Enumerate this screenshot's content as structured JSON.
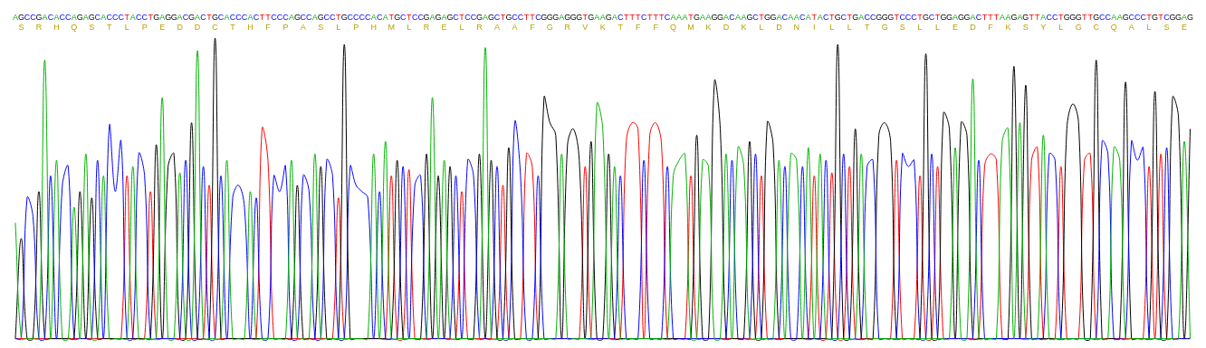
{
  "chart_data": {
    "type": "line",
    "sequence": "AGCCGACACCAGAGCACCCTACCTGAGGACGACTGCACCCACTTCCCAGCCAGCCTGCCCCACATGCTCCGAGAGCTCCGAGCTGCCTTCGGGAGGGTGAAGACTTTCTTTCAAATGAAGGACAAGCTGGACAACATACTGCTGACCGGGTCCCTGCTGGAGGACTTTAAGAGTTACCTGGGTTGCCAAGCCCTGTCGGAG",
    "translation": "SRHQSTLPEDDCTHFPASLPHMLRELRAAFGRVKTFFQMKDKLDNILLTGSLLEDFKSYLGCQALSE",
    "ylim": [
      0,
      100
    ],
    "grid": false,
    "tick_labels": "x",
    "series": [
      {
        "name": "A",
        "color": "#00b400",
        "values": [
          40,
          3,
          3,
          3,
          3,
          92,
          3,
          60,
          3,
          3,
          45,
          3,
          62,
          3,
          3,
          55,
          3,
          3,
          3,
          3,
          58,
          3,
          3,
          3,
          3,
          80,
          3,
          3,
          56,
          3,
          3,
          95,
          3,
          3,
          3,
          3,
          60,
          3,
          3,
          3,
          50,
          3,
          3,
          3,
          3,
          3,
          3,
          60,
          3,
          3,
          3,
          62,
          3,
          3,
          3,
          3,
          3,
          3,
          3,
          3,
          3,
          62,
          3,
          66,
          3,
          3,
          3,
          3,
          3,
          3,
          3,
          80,
          3,
          60,
          3,
          3,
          3,
          3,
          3,
          3,
          96,
          3,
          3,
          3,
          3,
          3,
          3,
          3,
          3,
          3,
          3,
          3,
          3,
          62,
          3,
          3,
          3,
          3,
          3,
          78,
          70,
          3,
          58,
          3,
          3,
          3,
          3,
          3,
          3,
          3,
          3,
          3,
          55,
          60,
          62,
          3,
          3,
          60,
          58,
          3,
          3,
          62,
          3,
          64,
          58,
          3,
          3,
          3,
          3,
          3,
          60,
          3,
          62,
          60,
          3,
          64,
          3,
          62,
          3,
          3,
          3,
          3,
          3,
          3,
          62,
          3,
          3,
          3,
          3,
          3,
          3,
          3,
          3,
          3,
          3,
          3,
          3,
          3,
          3,
          3,
          64,
          3,
          3,
          86,
          3,
          3,
          3,
          3,
          66,
          70,
          3,
          72,
          3,
          3,
          3,
          68,
          3,
          3,
          3,
          3,
          3,
          3,
          3,
          3,
          3,
          3,
          3,
          64,
          60,
          3,
          3,
          3,
          3,
          3,
          3,
          3,
          3,
          3,
          3,
          66,
          3
        ]
      },
      {
        "name": "C",
        "color": "#0000ff",
        "values": [
          3,
          3,
          48,
          42,
          3,
          3,
          55,
          3,
          52,
          58,
          3,
          3,
          3,
          3,
          60,
          3,
          71,
          50,
          66,
          3,
          3,
          62,
          55,
          3,
          3,
          3,
          3,
          3,
          3,
          60,
          3,
          3,
          58,
          3,
          3,
          55,
          3,
          48,
          52,
          45,
          3,
          48,
          3,
          3,
          55,
          50,
          58,
          3,
          3,
          55,
          50,
          3,
          3,
          60,
          55,
          3,
          3,
          58,
          52,
          50,
          48,
          3,
          50,
          3,
          3,
          3,
          58,
          3,
          52,
          55,
          3,
          3,
          3,
          3,
          3,
          55,
          3,
          60,
          55,
          3,
          3,
          3,
          58,
          3,
          3,
          72,
          55,
          3,
          3,
          55,
          3,
          3,
          3,
          3,
          3,
          3,
          3,
          3,
          3,
          3,
          3,
          3,
          3,
          55,
          3,
          3,
          3,
          60,
          3,
          3,
          3,
          58,
          3,
          3,
          3,
          3,
          3,
          3,
          3,
          3,
          3,
          3,
          60,
          3,
          3,
          3,
          62,
          3,
          3,
          3,
          3,
          58,
          3,
          3,
          58,
          3,
          3,
          3,
          60,
          3,
          3,
          62,
          3,
          3,
          3,
          58,
          60,
          3,
          3,
          3,
          3,
          62,
          58,
          60,
          3,
          3,
          62,
          3,
          3,
          3,
          3,
          3,
          3,
          3,
          60,
          3,
          3,
          3,
          3,
          3,
          3,
          3,
          3,
          3,
          3,
          3,
          62,
          60,
          3,
          3,
          3,
          3,
          3,
          3,
          3,
          66,
          62,
          3,
          3,
          3,
          66,
          60,
          64,
          3,
          3,
          3,
          64,
          3,
          3,
          3,
          3
        ]
      },
      {
        "name": "G",
        "color": "#000000",
        "values": [
          3,
          35,
          3,
          3,
          50,
          3,
          3,
          3,
          3,
          3,
          3,
          50,
          3,
          48,
          3,
          3,
          3,
          3,
          3,
          3,
          3,
          3,
          3,
          3,
          65,
          3,
          58,
          62,
          3,
          3,
          72,
          3,
          3,
          3,
          99,
          3,
          3,
          3,
          3,
          3,
          3,
          3,
          3,
          3,
          3,
          3,
          3,
          3,
          52,
          3,
          3,
          3,
          58,
          3,
          3,
          3,
          97,
          3,
          3,
          3,
          3,
          3,
          3,
          3,
          3,
          60,
          3,
          3,
          3,
          3,
          62,
          3,
          55,
          3,
          58,
          3,
          3,
          3,
          3,
          62,
          3,
          60,
          3,
          3,
          64,
          3,
          3,
          3,
          3,
          3,
          80,
          72,
          68,
          3,
          65,
          70,
          60,
          3,
          66,
          3,
          3,
          62,
          3,
          3,
          3,
          3,
          3,
          3,
          3,
          3,
          3,
          3,
          3,
          3,
          3,
          3,
          68,
          3,
          3,
          85,
          70,
          3,
          3,
          3,
          3,
          66,
          3,
          3,
          72,
          65,
          3,
          3,
          3,
          3,
          3,
          3,
          3,
          3,
          3,
          3,
          97,
          3,
          3,
          70,
          3,
          3,
          3,
          68,
          72,
          66,
          3,
          3,
          3,
          3,
          3,
          94,
          3,
          3,
          75,
          70,
          3,
          72,
          68,
          3,
          3,
          3,
          3,
          3,
          3,
          3,
          90,
          3,
          84,
          3,
          3,
          3,
          3,
          3,
          3,
          70,
          78,
          72,
          3,
          3,
          92,
          3,
          3,
          3,
          3,
          85,
          3,
          3,
          3,
          3,
          82,
          3,
          3,
          80,
          74,
          3,
          70
        ]
      },
      {
        "name": "T",
        "color": "#ff0000",
        "values": [
          3,
          3,
          3,
          3,
          3,
          3,
          3,
          3,
          3,
          3,
          3,
          3,
          3,
          3,
          3,
          3,
          3,
          3,
          3,
          55,
          3,
          3,
          3,
          50,
          3,
          3,
          3,
          3,
          3,
          3,
          3,
          3,
          3,
          52,
          3,
          3,
          3,
          3,
          3,
          3,
          3,
          3,
          70,
          60,
          3,
          3,
          3,
          3,
          3,
          3,
          3,
          3,
          3,
          3,
          3,
          48,
          3,
          3,
          3,
          3,
          3,
          3,
          3,
          3,
          55,
          3,
          3,
          57,
          3,
          3,
          3,
          3,
          3,
          3,
          3,
          3,
          50,
          3,
          3,
          3,
          3,
          3,
          3,
          52,
          3,
          3,
          3,
          62,
          58,
          3,
          3,
          3,
          3,
          3,
          3,
          3,
          3,
          58,
          3,
          3,
          3,
          3,
          3,
          3,
          66,
          72,
          70,
          3,
          68,
          72,
          65,
          3,
          3,
          3,
          3,
          55,
          3,
          3,
          3,
          3,
          3,
          3,
          3,
          3,
          3,
          3,
          3,
          55,
          3,
          3,
          3,
          3,
          3,
          3,
          3,
          3,
          55,
          3,
          3,
          56,
          3,
          3,
          58,
          3,
          3,
          3,
          3,
          3,
          3,
          3,
          60,
          3,
          3,
          3,
          55,
          3,
          3,
          58,
          3,
          3,
          3,
          3,
          3,
          3,
          3,
          58,
          62,
          60,
          3,
          3,
          3,
          3,
          3,
          60,
          64,
          3,
          3,
          3,
          58,
          3,
          3,
          3,
          60,
          62,
          3,
          3,
          3,
          3,
          3,
          3,
          3,
          3,
          3,
          58,
          3,
          62,
          3,
          3,
          3,
          3,
          3
        ]
      }
    ]
  }
}
